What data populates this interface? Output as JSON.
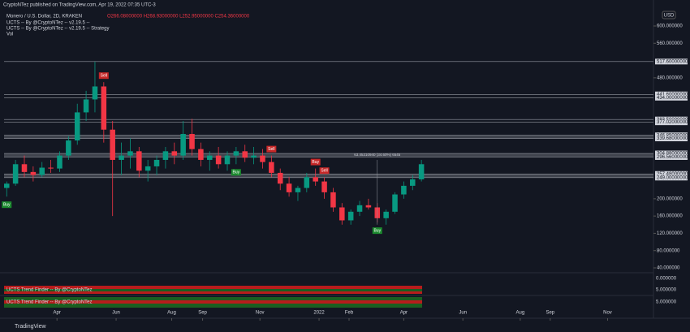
{
  "header": {
    "publisher": "CryptoNTez published on TradingView.com, Apr 19, 2022 07:35 UTC-3",
    "symbol": "Monero / U.S. Dollar, 2D, KRAKEN",
    "ohlc": "O266.08000000 H268.93000000 L252.95000000 C254.36000000",
    "indicators": [
      "UCTS -- By @CryptoNTez -- v2.19.5 --",
      "UCTS -- By @CryptoNTez -- v2.19.5 -- Strategy",
      "Vol"
    ],
    "currency": "USD"
  },
  "chart_data": {
    "type": "candlestick",
    "candles": [
      [
        225,
        240,
        205,
        235
      ],
      [
        235,
        290,
        230,
        280
      ],
      [
        280,
        300,
        250,
        262
      ],
      [
        262,
        275,
        240,
        255
      ],
      [
        255,
        285,
        250,
        272
      ],
      [
        272,
        290,
        260,
        270
      ],
      [
        270,
        310,
        262,
        300
      ],
      [
        300,
        345,
        290,
        335
      ],
      [
        335,
        420,
        325,
        400
      ],
      [
        400,
        450,
        380,
        430
      ],
      [
        430,
        517,
        400,
        460
      ],
      [
        460,
        470,
        330,
        360
      ],
      [
        360,
        380,
        160,
        290
      ],
      [
        290,
        330,
        255,
        300
      ],
      [
        300,
        340,
        270,
        310
      ],
      [
        310,
        320,
        250,
        265
      ],
      [
        265,
        290,
        240,
        275
      ],
      [
        275,
        300,
        255,
        290
      ],
      [
        290,
        320,
        270,
        310
      ],
      [
        310,
        330,
        280,
        300
      ],
      [
        300,
        380,
        290,
        350
      ],
      [
        350,
        385,
        300,
        315
      ],
      [
        315,
        330,
        275,
        290
      ],
      [
        290,
        310,
        265,
        300
      ],
      [
        300,
        320,
        270,
        280
      ],
      [
        280,
        310,
        265,
        300
      ],
      [
        300,
        320,
        280,
        310
      ],
      [
        310,
        325,
        285,
        295
      ],
      [
        295,
        320,
        280,
        300
      ],
      [
        300,
        315,
        270,
        285
      ],
      [
        285,
        300,
        250,
        260
      ],
      [
        260,
        270,
        220,
        235
      ],
      [
        235,
        250,
        205,
        215
      ],
      [
        215,
        230,
        195,
        225
      ],
      [
        225,
        260,
        215,
        250
      ],
      [
        250,
        270,
        230,
        240
      ],
      [
        240,
        250,
        200,
        215
      ],
      [
        215,
        225,
        170,
        180
      ],
      [
        180,
        190,
        140,
        150
      ],
      [
        150,
        175,
        140,
        170
      ],
      [
        170,
        195,
        160,
        185
      ],
      [
        185,
        200,
        175,
        180
      ],
      [
        180,
        190,
        145,
        155
      ],
      [
        155,
        175,
        140,
        170
      ],
      [
        170,
        215,
        165,
        210
      ],
      [
        210,
        240,
        200,
        230
      ],
      [
        230,
        255,
        220,
        245
      ],
      [
        245,
        290,
        240,
        280
      ]
    ],
    "up_color": "#089981",
    "down_color": "#f23645",
    "ylim": [
      40,
      600
    ],
    "yticks": [
      {
        "value": 600,
        "label": "600.000000"
      },
      {
        "value": 560,
        "label": "560.000000"
      },
      {
        "value": 480,
        "label": "480.000000"
      },
      {
        "value": 200,
        "label": "200.000000"
      },
      {
        "value": 160,
        "label": "160.000000"
      },
      {
        "value": 120,
        "label": "120.000000"
      },
      {
        "value": 80,
        "label": "80.000000"
      },
      {
        "value": 40,
        "label": "40.000000"
      }
    ],
    "levels": [
      {
        "value": 517.6,
        "label": "517.60000000"
      },
      {
        "value": 441.6,
        "label": "441.60000000"
      },
      {
        "value": 434,
        "label": "434.00000000"
      },
      {
        "value": 383.5,
        "label": "383.50000000"
      },
      {
        "value": 377.02,
        "label": "377.02000000"
      },
      {
        "value": 346.85,
        "label": "346.85000000"
      },
      {
        "value": 339.68,
        "label": "339.68000000"
      },
      {
        "value": 304.88,
        "label": "304.88000000"
      },
      {
        "value": 296.56,
        "label": "296.56000000"
      },
      {
        "value": 257.48,
        "label": "257.48000000"
      },
      {
        "value": 249,
        "label": "249.00000000"
      }
    ],
    "xlim": [
      -0.3,
      73.3
    ],
    "xticks": [
      {
        "value": 5.7,
        "label": "Apr"
      },
      {
        "value": 12.4,
        "label": "Jun"
      },
      {
        "value": 18.7,
        "label": "Aug"
      },
      {
        "value": 22.2,
        "label": "Sep"
      },
      {
        "value": 28.7,
        "label": "Nov"
      },
      {
        "value": 35.4,
        "label": "2022"
      },
      {
        "value": 38.8,
        "label": "Feb"
      },
      {
        "value": 45.0,
        "label": "Apr"
      },
      {
        "value": 51.7,
        "label": "Jun"
      },
      {
        "value": 58.2,
        "label": "Aug"
      },
      {
        "value": 61.6,
        "label": "Sep"
      },
      {
        "value": 68.1,
        "label": "Nov"
      }
    ],
    "signals": [
      {
        "index": 0,
        "label": "Buy"
      },
      {
        "index": 11,
        "label": "Sell"
      },
      {
        "index": 26,
        "label": "Buy"
      },
      {
        "index": 30,
        "label": "Sell"
      },
      {
        "index": 36,
        "label": "Sell"
      },
      {
        "index": 35,
        "label": "Buy"
      },
      {
        "index": 42,
        "label": "Buy"
      }
    ],
    "annotation": "63.45310940 (34.60%) 6545"
  },
  "panes": [
    {
      "title": "UCTS Trend Finder -- By @CryptoNTez",
      "labels": [
        "0.000000",
        "5.000000"
      ]
    },
    {
      "title": "UCTS Trend Finder -- By @CryptoNTez",
      "labels": [
        "5.000000"
      ]
    }
  ],
  "footer": "TradingView"
}
